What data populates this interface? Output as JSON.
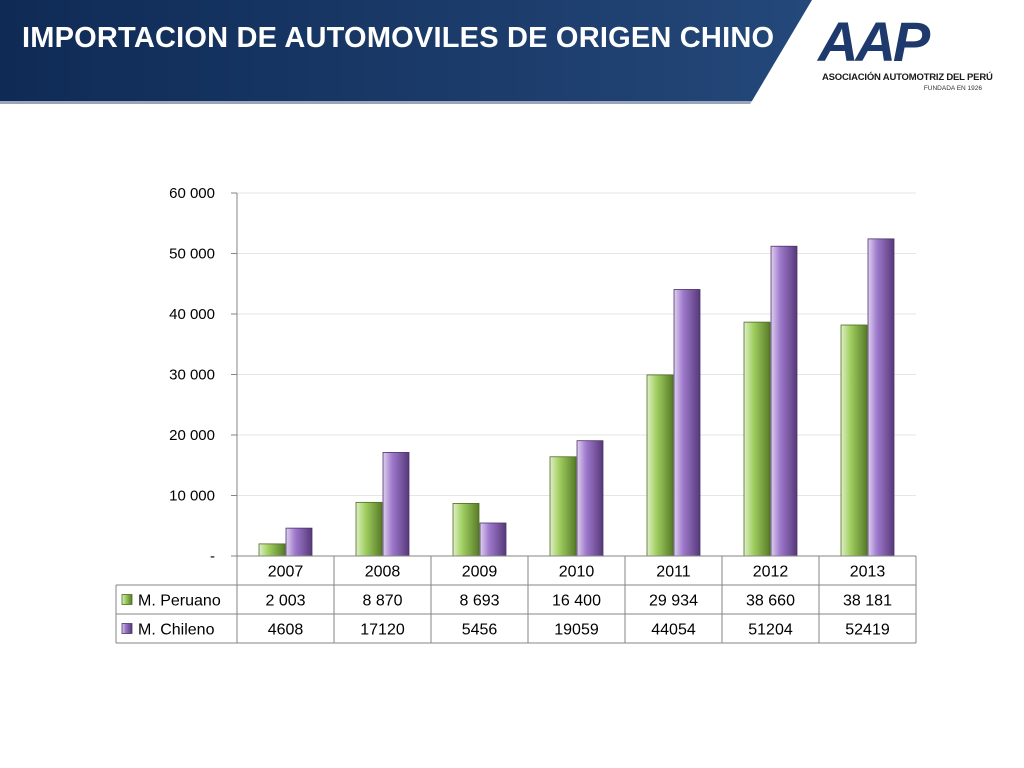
{
  "slide": {
    "title": "IMPORTACION DE AUTOMOVILES DE ORIGEN CHINO"
  },
  "logo": {
    "mark": "AAP",
    "name": "ASOCIACIÓN AUTOMOTRIZ DEL PERÚ",
    "subtitle": "FUNDADA EN 1926",
    "color": "#1e3a6d"
  },
  "colors": {
    "header_dark": "#0f2a55",
    "header_light": "#24487a",
    "peruano": "#8dc63f",
    "chileno": "#8a5cc2"
  },
  "chart_data": {
    "type": "bar",
    "categories": [
      "2007",
      "2008",
      "2009",
      "2010",
      "2011",
      "2012",
      "2013"
    ],
    "series": [
      {
        "name": "M. Peruano",
        "values": [
          2003,
          8870,
          8693,
          16400,
          29934,
          38660,
          38181
        ],
        "labels": [
          "2 003",
          "8 870",
          "8 693",
          "16 400",
          "29 934",
          "38 660",
          "38 181"
        ],
        "color": "#8dc63f"
      },
      {
        "name": "M. Chileno",
        "values": [
          4608,
          17120,
          5456,
          19059,
          44054,
          51204,
          52419
        ],
        "labels": [
          "4608",
          "17120",
          "5456",
          "19059",
          "44054",
          "51204",
          "52419"
        ],
        "color": "#8a5cc2"
      }
    ],
    "ylim": [
      0,
      60000
    ],
    "yticks": [
      0,
      10000,
      20000,
      30000,
      40000,
      50000,
      60000
    ],
    "ytick_labels": [
      "-",
      "10 000",
      "20 000",
      "30 000",
      "40 000",
      "50 000",
      "60 000"
    ],
    "grid": true,
    "legend": "data-table",
    "data_table": true,
    "title": "",
    "xlabel": "",
    "ylabel": ""
  }
}
